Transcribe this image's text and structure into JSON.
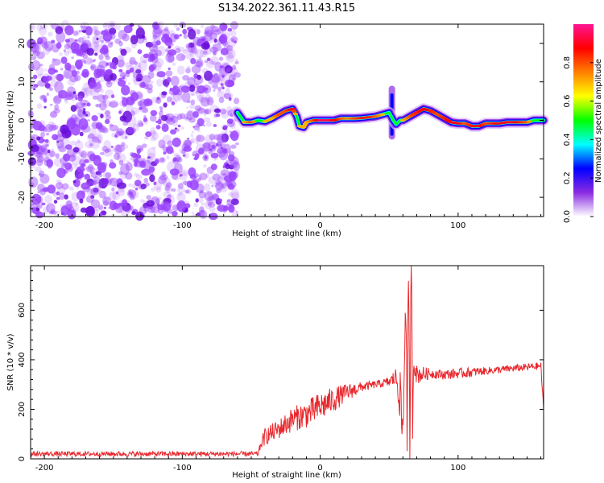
{
  "title": "S134.2022.361.11.43.R15",
  "colors": {
    "snr_line": "#e8282d",
    "noise_purple": "#8a2be2",
    "frame": "#000000"
  },
  "chart_data": [
    {
      "type": "heatmap",
      "xlabel": "Height of straight line (km)",
      "ylabel": "Frequency (Hz)",
      "xlim": [
        -210,
        162
      ],
      "ylim": [
        -25,
        25
      ],
      "xticks": [
        -200,
        -100,
        0,
        100
      ],
      "yticks": [
        -20,
        -10,
        0,
        10,
        20
      ],
      "colorbar": {
        "label": "Normalized spectral amplitude",
        "range": [
          0,
          1
        ],
        "ticks": [
          "0.0",
          "0.2",
          "0.4",
          "0.6",
          "0.8"
        ],
        "colormap": [
          "#ffffff",
          "#8a2be2",
          "#0000ff",
          "#00ffff",
          "#00ff00",
          "#ffff00",
          "#ff8000",
          "#ff0000",
          "#ff1493"
        ]
      },
      "noise_region_x": [
        -210,
        -60
      ],
      "trace": {
        "x": [
          -60,
          -55,
          -50,
          -45,
          -40,
          -35,
          -30,
          -25,
          -20,
          -17,
          -15,
          -12,
          -10,
          -5,
          0,
          5,
          10,
          15,
          20,
          25,
          30,
          35,
          40,
          45,
          50,
          53,
          55,
          58,
          60,
          65,
          70,
          75,
          80,
          85,
          90,
          95,
          100,
          105,
          110,
          115,
          120,
          125,
          130,
          135,
          140,
          145,
          150,
          155,
          162
        ],
        "y": [
          2,
          -0.5,
          -0.5,
          0,
          -0.3,
          0.5,
          1.5,
          2.5,
          3,
          1,
          -1.5,
          -1.8,
          -0.5,
          0,
          0,
          0,
          0,
          0.5,
          0.5,
          0.5,
          0.6,
          0.8,
          1.0,
          1.5,
          2,
          0,
          -1,
          0,
          0,
          1,
          2,
          3,
          2.5,
          1.5,
          0.5,
          -0.5,
          -0.8,
          -0.8,
          -1.5,
          -1.5,
          -0.8,
          -0.8,
          -0.8,
          -0.5,
          -0.5,
          -0.5,
          -0.5,
          0,
          0
        ],
        "amp": [
          0.3,
          0.7,
          0.8,
          0.6,
          0.7,
          0.7,
          0.8,
          0.8,
          0.9,
          0.6,
          0.7,
          0.7,
          0.7,
          0.8,
          0.95,
          0.95,
          0.9,
          0.8,
          0.75,
          0.8,
          0.85,
          0.85,
          0.8,
          0.7,
          0.6,
          0.5,
          0.4,
          0.6,
          0.7,
          0.8,
          0.85,
          0.9,
          0.85,
          0.8,
          0.85,
          0.9,
          0.9,
          0.8,
          0.85,
          0.9,
          0.8,
          0.85,
          0.9,
          0.9,
          0.9,
          0.85,
          0.8,
          0.6,
          0.5
        ]
      },
      "burst_x": 52,
      "burst_y_range": [
        -5,
        9
      ]
    },
    {
      "type": "line",
      "xlabel": "Height of straight line (km)",
      "ylabel": "SNR (10 * v/v)",
      "xlim": [
        -210,
        162
      ],
      "ylim": [
        0,
        780
      ],
      "xticks": [
        -200,
        -100,
        0,
        100
      ],
      "yticks": [
        0,
        200,
        400,
        600
      ],
      "series": [
        {
          "x": [
            -210,
            -100,
            -45,
            -43,
            -40,
            -30,
            -20,
            -10,
            0,
            10,
            20,
            30,
            40,
            50,
            55,
            58,
            60,
            62,
            63,
            64,
            65,
            66,
            67,
            68,
            70,
            80,
            90,
            100,
            110,
            120,
            130,
            140,
            150,
            160,
            162
          ],
          "y": [
            20,
            20,
            20,
            60,
            90,
            120,
            160,
            180,
            210,
            240,
            270,
            290,
            300,
            310,
            330,
            250,
            90,
            700,
            120,
            660,
            60,
            780,
            200,
            420,
            340,
            345,
            340,
            345,
            350,
            355,
            360,
            365,
            370,
            375,
            200
          ],
          "noise": [
            10,
            10,
            10,
            20,
            35,
            40,
            50,
            55,
            60,
            50,
            35,
            20,
            15,
            20,
            40,
            100,
            150,
            150,
            150,
            150,
            150,
            150,
            120,
            80,
            40,
            20,
            20,
            20,
            20,
            15,
            15,
            15,
            15,
            15,
            10
          ]
        }
      ]
    }
  ]
}
